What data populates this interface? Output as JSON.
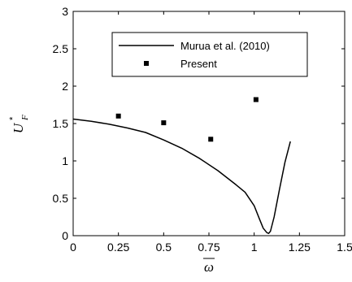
{
  "chart_data": {
    "type": "line",
    "title": "",
    "xlabel": "ω",
    "ylabel": {
      "base": "U",
      "superscript": "*",
      "subscript": "F"
    },
    "xlim": [
      0,
      1.5
    ],
    "ylim": [
      0,
      3
    ],
    "x_ticks": [
      "0",
      "0.25",
      "0.5",
      "0.75",
      "1",
      "1.25",
      "1.5"
    ],
    "y_ticks": [
      "0",
      "0.5",
      "1",
      "1.5",
      "2",
      "2.5",
      "3"
    ],
    "grid": false,
    "legend_position": "top-right",
    "series": [
      {
        "name": "Murua et al. (2010)",
        "style": "line",
        "color": "#000000",
        "x": [
          0.0,
          0.1,
          0.2,
          0.3,
          0.4,
          0.5,
          0.6,
          0.7,
          0.8,
          0.9,
          0.95,
          1.0,
          1.03,
          1.05,
          1.07,
          1.08,
          1.09,
          1.11,
          1.14,
          1.17,
          1.2
        ],
        "y": [
          1.56,
          1.53,
          1.49,
          1.44,
          1.38,
          1.28,
          1.17,
          1.03,
          0.87,
          0.68,
          0.58,
          0.4,
          0.22,
          0.1,
          0.04,
          0.03,
          0.06,
          0.25,
          0.62,
          0.98,
          1.26
        ]
      },
      {
        "name": "Present",
        "style": "markers",
        "marker": "square",
        "color": "#000000",
        "x": [
          0.25,
          0.5,
          0.76,
          1.01
        ],
        "y": [
          1.6,
          1.51,
          1.29,
          1.82
        ]
      }
    ]
  }
}
